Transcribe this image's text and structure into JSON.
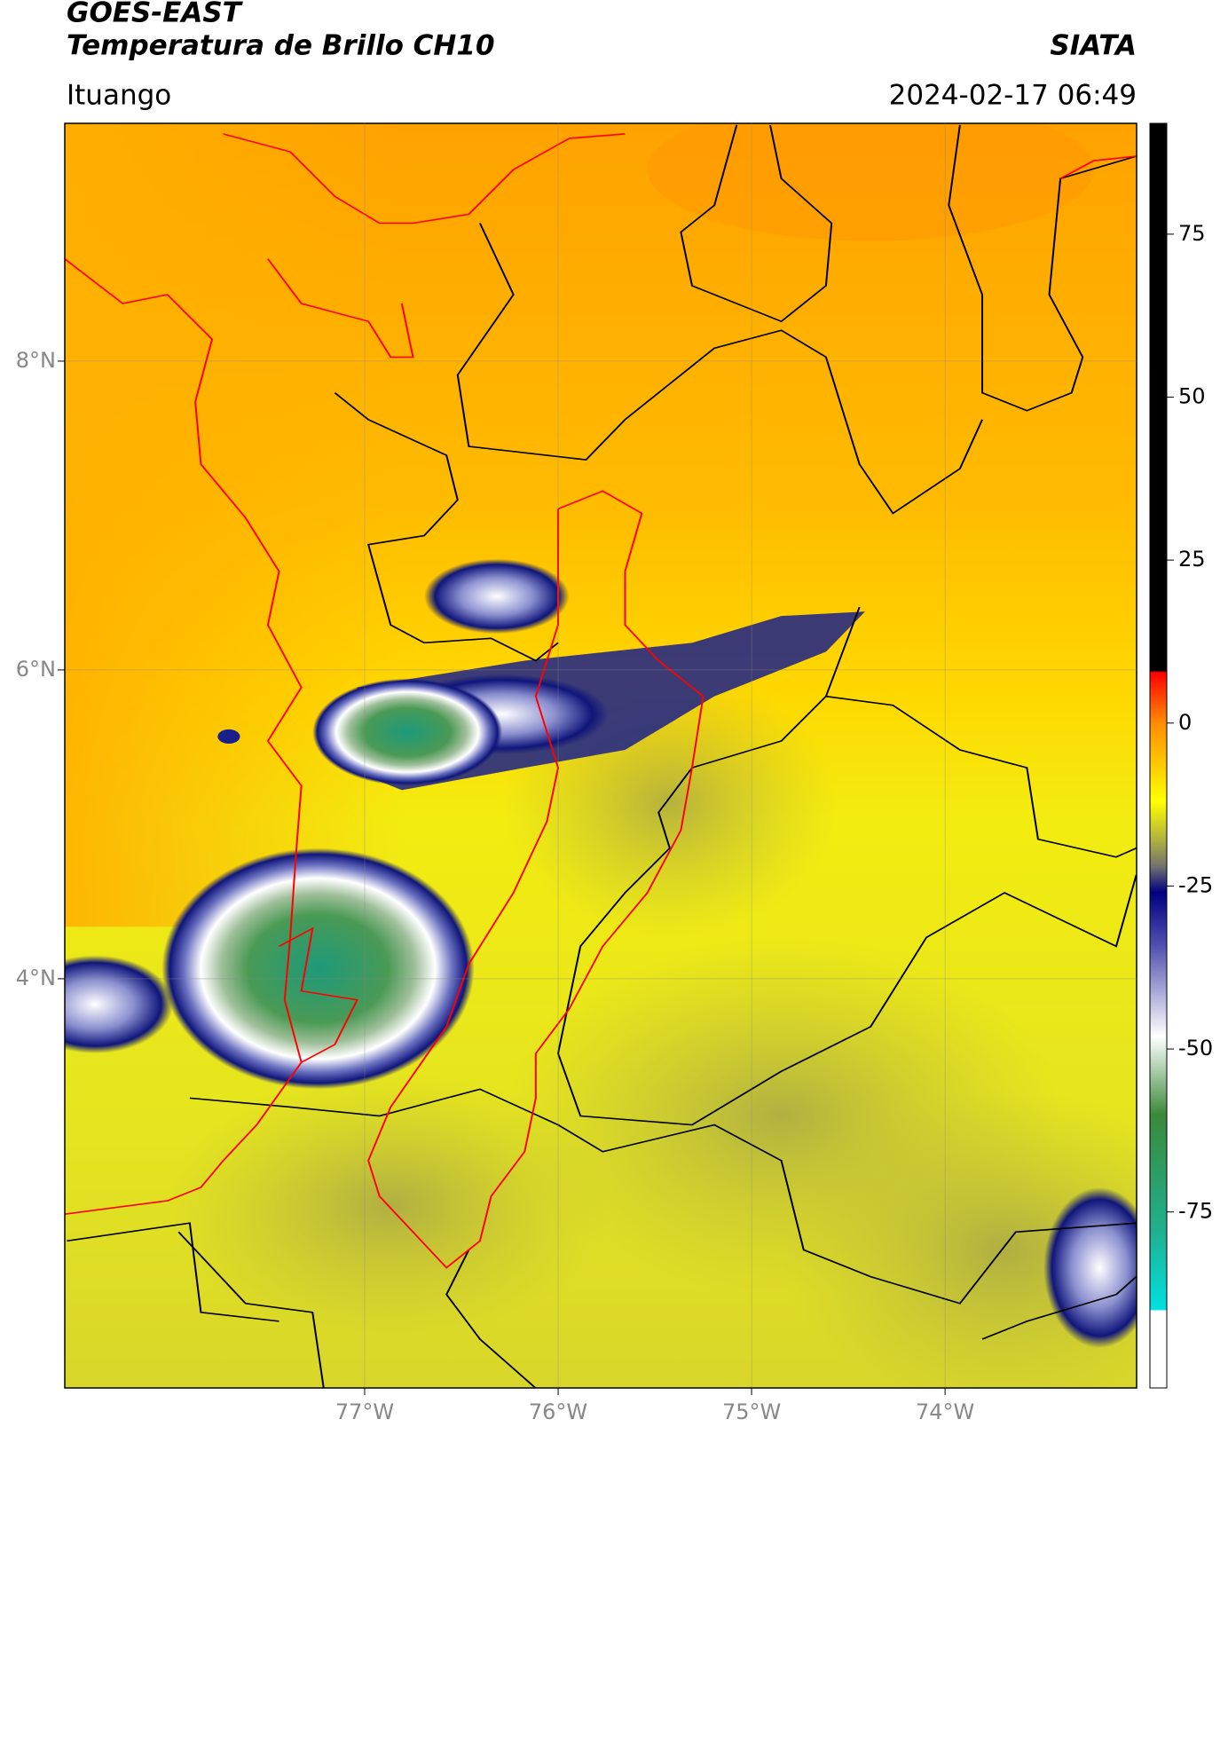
{
  "map": {
    "satellite": "GOES-EAST",
    "title": "Temperatura de Brillo CH10",
    "brand": "SIATA",
    "location": "Ituango",
    "datetime": "2024-02-17 06:49",
    "xlim": [
      -78.55,
      -73.01
    ],
    "ylim": [
      1.35,
      9.54
    ],
    "xticks": [
      {
        "value": -77,
        "label": "77°W"
      },
      {
        "value": -76,
        "label": "76°W"
      },
      {
        "value": -75,
        "label": "75°W"
      },
      {
        "value": -74,
        "label": "74°W"
      }
    ],
    "yticks": [
      {
        "value": 8,
        "label": "8°N"
      },
      {
        "value": 6,
        "label": "6°N"
      },
      {
        "value": 4,
        "label": "4°N"
      }
    ]
  },
  "colorbar": {
    "ylim": [
      -102,
      92
    ],
    "yticks": [
      75,
      50,
      25,
      0,
      -25,
      -50,
      -75
    ]
  }
}
